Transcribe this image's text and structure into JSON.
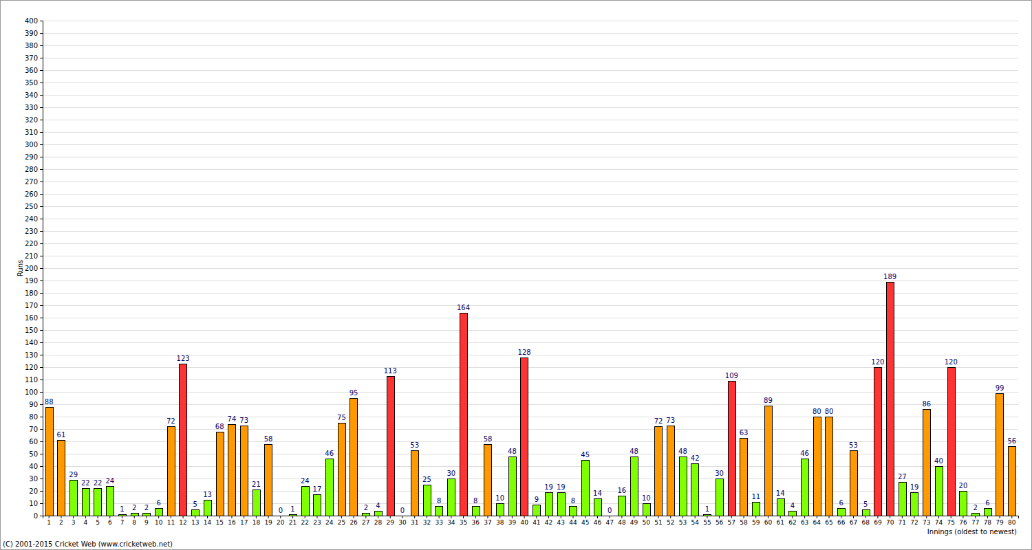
{
  "chart_data": {
    "type": "bar",
    "x_label": "Innings (oldest to newest)",
    "y_label": "Runs",
    "annotations": [
      "(C) 2001-2015 Cricket Web (www.cricketweb.net)"
    ],
    "categories": [
      "1",
      "2",
      "3",
      "4",
      "5",
      "6",
      "7",
      "8",
      "9",
      "10",
      "11",
      "12",
      "13",
      "14",
      "15",
      "16",
      "17",
      "18",
      "19",
      "20",
      "21",
      "22",
      "23",
      "24",
      "25",
      "26",
      "27",
      "28",
      "29",
      "30",
      "31",
      "32",
      "33",
      "34",
      "35",
      "36",
      "37",
      "38",
      "39",
      "40",
      "41",
      "42",
      "43",
      "44",
      "45",
      "46",
      "47",
      "48",
      "49",
      "50",
      "51",
      "52",
      "53",
      "54",
      "55",
      "56",
      "57",
      "58",
      "59",
      "60",
      "61",
      "62",
      "63",
      "64",
      "65",
      "66",
      "67",
      "68",
      "69",
      "70",
      "71",
      "72",
      "73",
      "74",
      "75",
      "76",
      "77",
      "78",
      "79",
      "80"
    ],
    "values": [
      88,
      61,
      29,
      22,
      22,
      24,
      1,
      2,
      2,
      6,
      72,
      123,
      5,
      13,
      68,
      74,
      73,
      21,
      58,
      0,
      1,
      24,
      17,
      46,
      75,
      95,
      2,
      4,
      113,
      0,
      53,
      25,
      8,
      30,
      164,
      8,
      58,
      10,
      48,
      128,
      9,
      19,
      19,
      8,
      45,
      14,
      0,
      16,
      48,
      10,
      72,
      73,
      48,
      42,
      1,
      30,
      109,
      63,
      11,
      89,
      14,
      4,
      46,
      80,
      80,
      6,
      53,
      5,
      120,
      189,
      27,
      19,
      86,
      40,
      120,
      20,
      2,
      6,
      99,
      56
    ],
    "colors": [
      "#ff9900",
      "#ff9900",
      "#80ff00",
      "#80ff00",
      "#80ff00",
      "#80ff00",
      "#80ff00",
      "#80ff00",
      "#80ff00",
      "#80ff00",
      "#ff9900",
      "#ff3333",
      "#80ff00",
      "#80ff00",
      "#ff9900",
      "#ff9900",
      "#ff9900",
      "#80ff00",
      "#ff9900",
      "#80ff00",
      "#80ff00",
      "#80ff00",
      "#80ff00",
      "#80ff00",
      "#ff9900",
      "#ff9900",
      "#80ff00",
      "#80ff00",
      "#ff3333",
      "#80ff00",
      "#ff9900",
      "#80ff00",
      "#80ff00",
      "#80ff00",
      "#ff3333",
      "#80ff00",
      "#ff9900",
      "#80ff00",
      "#80ff00",
      "#ff3333",
      "#80ff00",
      "#80ff00",
      "#80ff00",
      "#80ff00",
      "#80ff00",
      "#80ff00",
      "#80ff00",
      "#80ff00",
      "#80ff00",
      "#80ff00",
      "#ff9900",
      "#ff9900",
      "#80ff00",
      "#80ff00",
      "#80ff00",
      "#80ff00",
      "#ff3333",
      "#ff9900",
      "#80ff00",
      "#ff9900",
      "#80ff00",
      "#80ff00",
      "#80ff00",
      "#ff9900",
      "#ff9900",
      "#80ff00",
      "#ff9900",
      "#80ff00",
      "#ff3333",
      "#ff3333",
      "#80ff00",
      "#80ff00",
      "#ff9900",
      "#80ff00",
      "#ff3333",
      "#80ff00",
      "#80ff00",
      "#80ff00",
      "#ff9900",
      "#ff9900"
    ],
    "ylim": [
      0,
      400
    ],
    "yticks": [
      0,
      10,
      20,
      30,
      40,
      50,
      60,
      70,
      80,
      90,
      100,
      110,
      120,
      130,
      140,
      150,
      160,
      170,
      180,
      190,
      200,
      210,
      220,
      230,
      240,
      250,
      260,
      270,
      280,
      290,
      300,
      310,
      320,
      330,
      340,
      350,
      360,
      370,
      380,
      390,
      400
    ],
    "grid": true,
    "data_labels": true
  }
}
